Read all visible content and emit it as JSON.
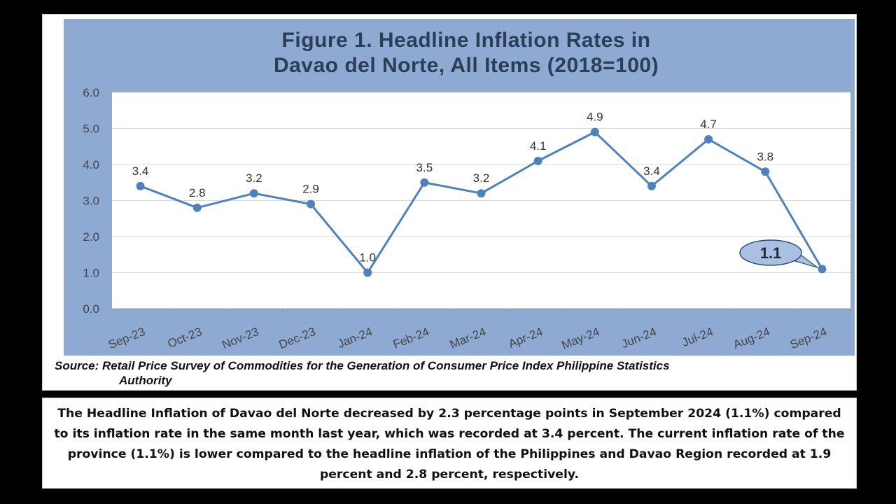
{
  "chart_data": {
    "type": "line",
    "title_line1": "Figure 1. Headline Inflation Rates in",
    "title_line2": "Davao del Norte, All Items (2018=100)",
    "categories": [
      "Sep-23",
      "Oct-23",
      "Nov-23",
      "Dec-23",
      "Jan-24",
      "Feb-24",
      "Mar-24",
      "Apr-24",
      "May-24",
      "Jun-24",
      "Jul-24",
      "Aug-24",
      "Sep-24"
    ],
    "series": [
      {
        "values": [
          3.4,
          2.8,
          3.2,
          2.9,
          1.0,
          3.5,
          3.2,
          4.1,
          4.9,
          3.4,
          4.7,
          3.8,
          1.1
        ]
      }
    ],
    "data_labels": [
      "3.4",
      "2.8",
      "3.2",
      "2.9",
      "1.0",
      "3.5",
      "3.2",
      "4.1",
      "4.9",
      "3.4",
      "4.7",
      "3.8",
      "1.1"
    ],
    "y_ticks": [
      "0.0",
      "1.0",
      "2.0",
      "3.0",
      "4.0",
      "5.0",
      "6.0"
    ],
    "ylim": [
      0,
      6
    ],
    "grid": true,
    "callout": {
      "category": "Sep-24",
      "value": 1.1,
      "text": "1.1"
    },
    "colors": {
      "line": "#4f81bd",
      "panel": "#8eaad3",
      "plot_area": "#ffffff",
      "title": "#2a3f56",
      "callout_fill": "#a9c0e3"
    }
  },
  "source_label": "Source:",
  "source_text_line1": "Retail Price Survey of Commodities for the Generation of Consumer Price Index Philippine Statistics",
  "source_text_line2": "Authority",
  "summary": "The Headline Inflation of Davao del Norte decreased by 2.3 percentage points in September 2024 (1.1%) compared to its inflation rate in the same month last year, which was recorded at 3.4 percent. The current inflation rate of the province (1.1%) is lower compared to the headline inflation of the Philippines and Davao Region  recorded at 1.9 percent and 2.8 percent, respectively."
}
